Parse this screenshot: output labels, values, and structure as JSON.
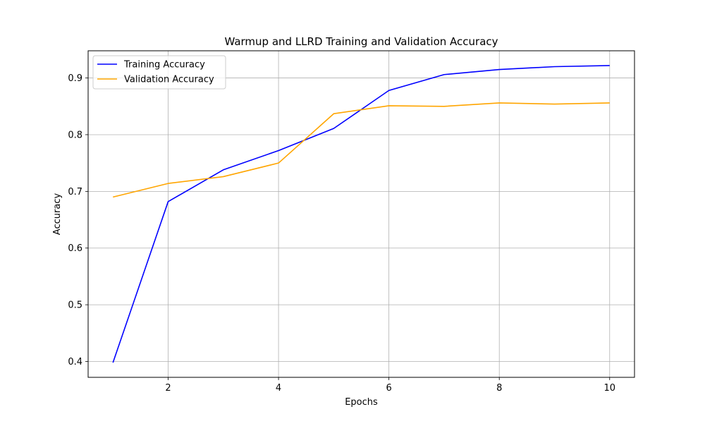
{
  "chart_data": {
    "type": "line",
    "title": "Warmup and LLRD Training and Validation Accuracy",
    "xlabel": "Epochs",
    "ylabel": "Accuracy",
    "x": [
      1,
      2,
      3,
      4,
      5,
      6,
      7,
      8,
      9,
      10
    ],
    "xlim": [
      0.55,
      10.45
    ],
    "ylim": [
      0.372,
      0.948
    ],
    "xticks": [
      2,
      4,
      6,
      8,
      10
    ],
    "xtick_labels": [
      "2",
      "4",
      "6",
      "8",
      "10"
    ],
    "yticks": [
      0.4,
      0.5,
      0.6,
      0.7,
      0.8,
      0.9
    ],
    "ytick_labels": [
      "0.4",
      "0.5",
      "0.6",
      "0.7",
      "0.8",
      "0.9"
    ],
    "grid": true,
    "legend_position": "top-left",
    "series": [
      {
        "name": "Training Accuracy",
        "color": "#0000ff",
        "values": [
          0.398,
          0.682,
          0.738,
          0.772,
          0.811,
          0.878,
          0.906,
          0.915,
          0.92,
          0.922
        ]
      },
      {
        "name": "Validation Accuracy",
        "color": "#ffa500",
        "values": [
          0.69,
          0.714,
          0.726,
          0.75,
          0.837,
          0.851,
          0.85,
          0.856,
          0.854,
          0.856
        ]
      }
    ]
  }
}
